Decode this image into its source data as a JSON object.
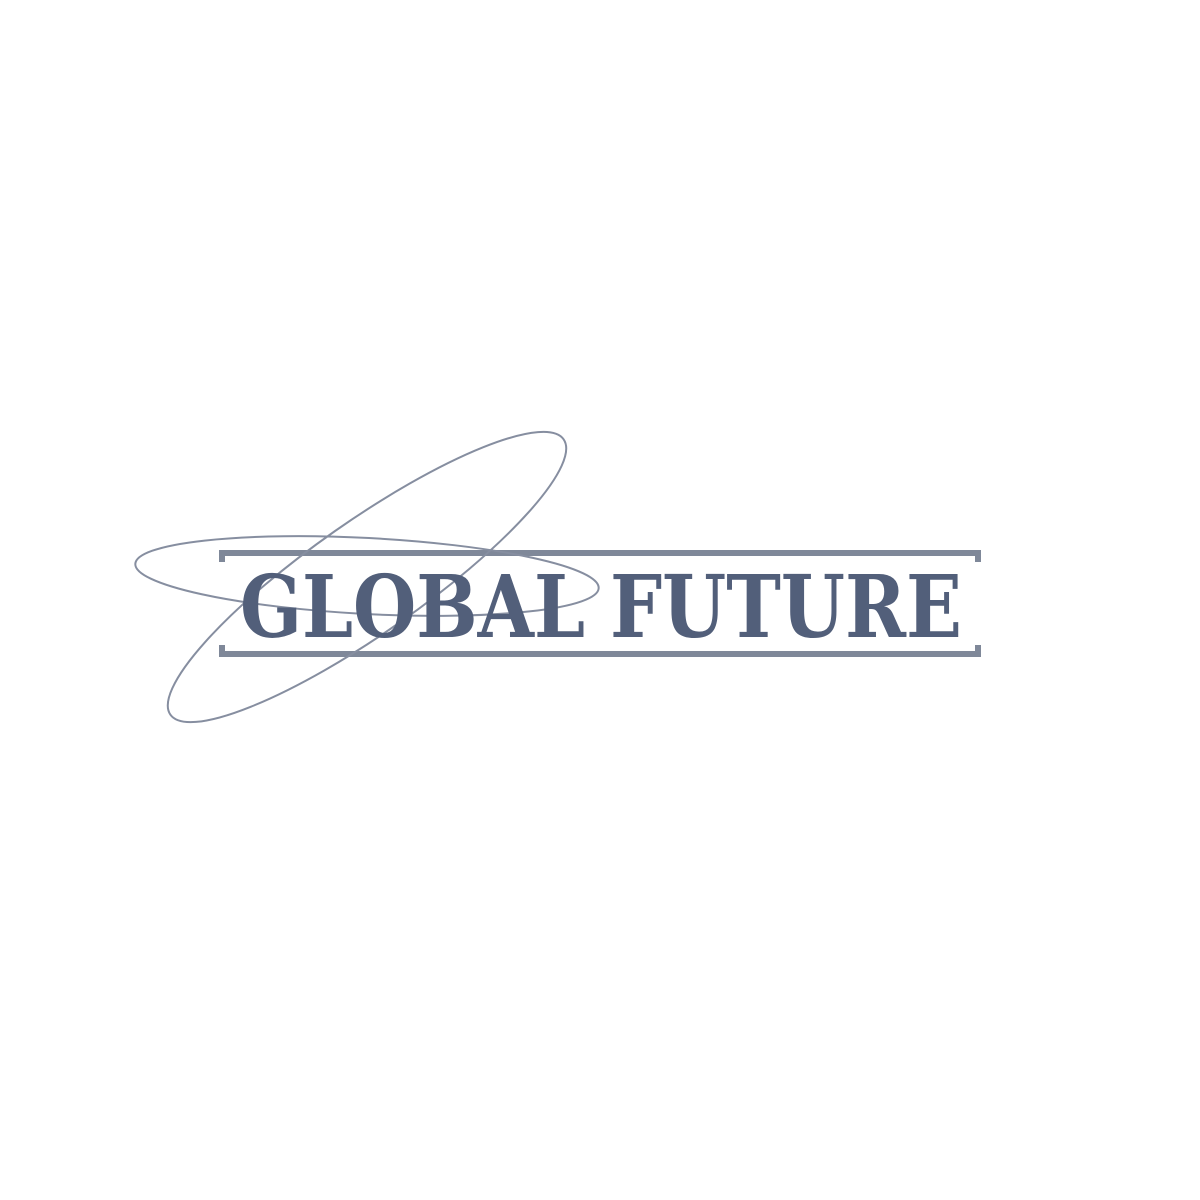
{
  "logo": {
    "word_1": "GLOBAL",
    "word_2": "FUTURE",
    "text_color": "#525f7a",
    "frame_color": "#7f8899",
    "orbit_color": "#868ea0"
  }
}
